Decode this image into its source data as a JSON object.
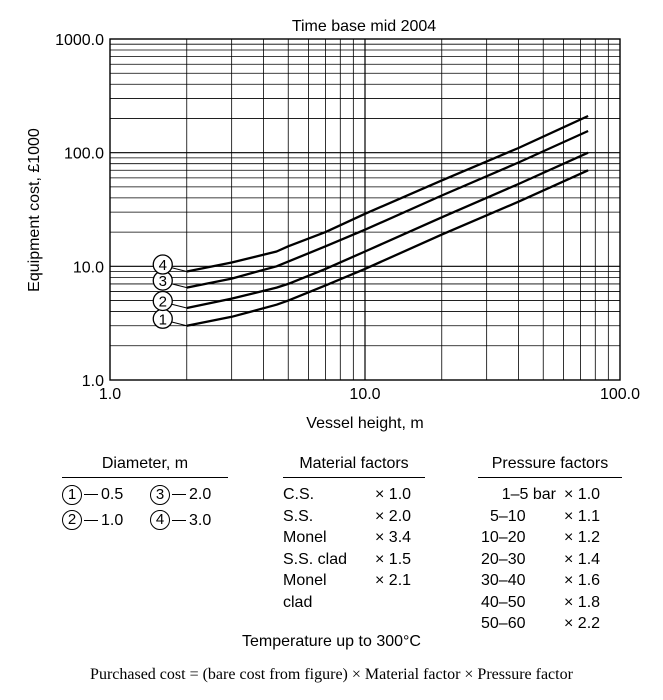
{
  "chart_data": {
    "type": "line",
    "title": "Time base mid 2004",
    "xlabel": "Vessel height, m",
    "ylabel": "Equipment cost, £1000",
    "x_scale": "log",
    "y_scale": "log",
    "xlim": [
      1.0,
      100.0
    ],
    "ylim": [
      1.0,
      1000.0
    ],
    "x_ticks": [
      "1.0",
      "10.0",
      "100.0"
    ],
    "y_ticks": [
      "1.0",
      "10.0",
      "100.0",
      "1000.0"
    ],
    "grid": true,
    "series": [
      {
        "name": "1",
        "x": [
          2,
          3,
          4.5,
          5,
          7,
          10,
          20,
          40,
          75
        ],
        "y": [
          3.0,
          3.6,
          4.6,
          5.0,
          6.8,
          9.5,
          19,
          37,
          70
        ]
      },
      {
        "name": "2",
        "x": [
          2,
          3,
          4.5,
          5,
          7,
          10,
          20,
          40,
          75
        ],
        "y": [
          4.3,
          5.2,
          6.5,
          7.0,
          9.5,
          13.5,
          27,
          53,
          100
        ]
      },
      {
        "name": "3",
        "x": [
          2,
          3,
          4.5,
          5,
          7,
          10,
          20,
          40,
          75
        ],
        "y": [
          6.5,
          7.8,
          10.0,
          11.0,
          15,
          21,
          42,
          82,
          155
        ]
      },
      {
        "name": "4",
        "x": [
          2,
          3,
          4.5,
          5,
          7,
          10,
          20,
          40,
          75
        ],
        "y": [
          9.0,
          10.8,
          13.5,
          15.0,
          20,
          29,
          57,
          110,
          210
        ]
      }
    ]
  },
  "tables": {
    "diameter": {
      "title": "Diameter, m",
      "entries": [
        {
          "num": "1",
          "value": "0.5"
        },
        {
          "num": "3",
          "value": "2.0"
        },
        {
          "num": "2",
          "value": "1.0"
        },
        {
          "num": "4",
          "value": "3.0"
        }
      ]
    },
    "material": {
      "title": "Material factors",
      "rows": [
        {
          "name": "C.S.",
          "factor": "× 1.0"
        },
        {
          "name": "S.S.",
          "factor": "× 2.0"
        },
        {
          "name": "Monel",
          "factor": "× 3.4"
        },
        {
          "name": "S.S. clad",
          "factor": "× 1.5"
        },
        {
          "name": "Monel",
          "factor": "× 2.1"
        },
        {
          "name": "clad",
          "factor": ""
        }
      ]
    },
    "pressure": {
      "title": "Pressure factors",
      "rows": [
        {
          "range": "1–5 bar",
          "factor": "× 1.0"
        },
        {
          "range": "5–10",
          "factor": "× 1.1"
        },
        {
          "range": "10–20",
          "factor": "× 1.2"
        },
        {
          "range": "20–30",
          "factor": "× 1.4"
        },
        {
          "range": "30–40",
          "factor": "× 1.6"
        },
        {
          "range": "40–50",
          "factor": "× 1.8"
        },
        {
          "range": "50–60",
          "factor": "× 2.2"
        }
      ]
    }
  },
  "temperature_note": "Temperature up to 300°C",
  "formula": "Purchased cost = (bare cost from figure) × Material factor × Pressure factor"
}
